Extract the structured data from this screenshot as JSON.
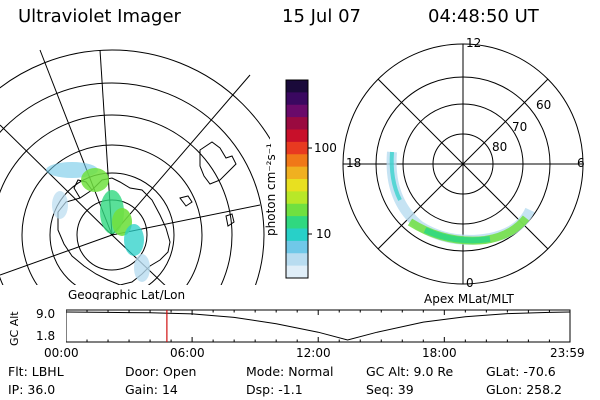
{
  "header": {
    "title": "Ultraviolet Imager",
    "date": "15 Jul 07",
    "time": "04:48:50 UT"
  },
  "left_panel": {
    "label": "Geographic Lat/Lon"
  },
  "right_panel": {
    "label": "Apex MLat/MLT",
    "lat_labels": [
      "80",
      "70",
      "60"
    ],
    "mlt_labels": {
      "top": "12",
      "bottom": "0",
      "left": "18",
      "right": "6"
    }
  },
  "colorbar": {
    "unit_label": "photon cm⁻²s⁻¹",
    "tick_labels": [
      "100",
      "10"
    ],
    "colors": [
      "#1a0a3a",
      "#3a0860",
      "#6a0a6a",
      "#9a0a40",
      "#c8102a",
      "#e83a20",
      "#f07818",
      "#f0b020",
      "#e8e020",
      "#b8e828",
      "#70e040",
      "#30d880",
      "#28d0c8",
      "#70c8e8",
      "#b8dcf0",
      "#e0eef8"
    ]
  },
  "timeline": {
    "axis_label": "GC Alt",
    "y_ticks": [
      "9.0",
      "1.8"
    ],
    "x_ticks": [
      "00:00",
      "06:00",
      "12:00",
      "18:00",
      "23:59"
    ],
    "marker_time": "04:48",
    "marker_color": "#d01010",
    "altitude_curve": [
      {
        "t": 0.0,
        "alt": 9.0
      },
      {
        "t": 2.0,
        "alt": 8.9
      },
      {
        "t": 4.0,
        "alt": 8.8
      },
      {
        "t": 6.0,
        "alt": 8.5
      },
      {
        "t": 8.0,
        "alt": 7.6
      },
      {
        "t": 10.0,
        "alt": 6.0
      },
      {
        "t": 12.0,
        "alt": 3.8
      },
      {
        "t": 13.4,
        "alt": 1.8
      },
      {
        "t": 14.8,
        "alt": 3.8
      },
      {
        "t": 17.0,
        "alt": 6.4
      },
      {
        "t": 19.0,
        "alt": 7.8
      },
      {
        "t": 21.0,
        "alt": 8.6
      },
      {
        "t": 23.0,
        "alt": 8.9
      },
      {
        "t": 23.98,
        "alt": 9.0
      }
    ]
  },
  "info": {
    "row1": [
      {
        "label": "Flt:",
        "value": "LBHL"
      },
      {
        "label": "Door:",
        "value": "Open"
      },
      {
        "label": "Mode:",
        "value": "Normal"
      },
      {
        "label": "GC Alt:",
        "value": "9.0 Re"
      },
      {
        "label": "GLat:",
        "value": "-70.6"
      }
    ],
    "row2": [
      {
        "label": "IP:",
        "value": "36.0"
      },
      {
        "label": "Gain:",
        "value": "14"
      },
      {
        "label": "Dsp:",
        "value": "-1.1"
      },
      {
        "label": "Seq:",
        "value": "39"
      },
      {
        "label": "GLon:",
        "value": "258.2"
      }
    ]
  }
}
